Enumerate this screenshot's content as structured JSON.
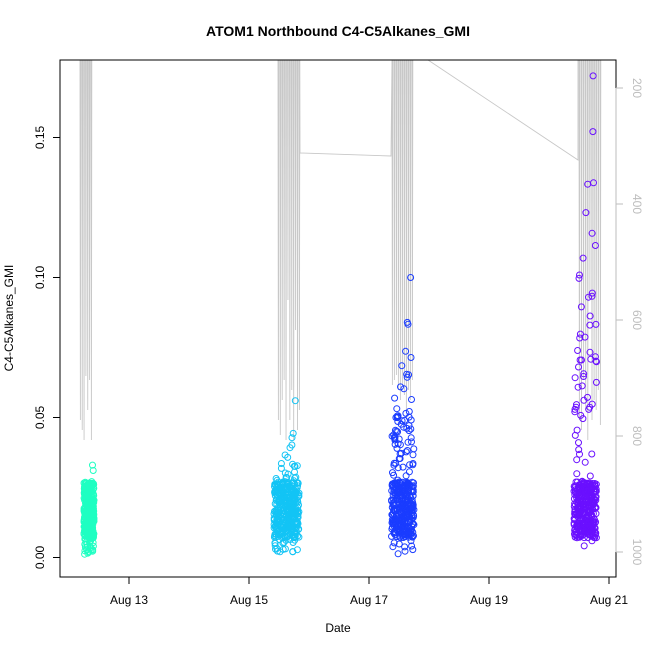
{
  "chart_data": {
    "type": "scatter",
    "title": "ATOM1 Northbound C4-C5Alkanes_GMI",
    "xlabel": "Date",
    "ylabel": "C4-C5Alkanes_GMI",
    "x_ticks": [
      "Aug 13",
      "Aug 15",
      "Aug 17",
      "Aug 19",
      "Aug 21"
    ],
    "y_ticks": [
      "0.00",
      "0.05",
      "0.10",
      "0.15"
    ],
    "y2_ticks": [
      "200",
      "400",
      "600",
      "800",
      "1000"
    ],
    "y2_reversed": true,
    "grid": false,
    "colors": {
      "series": [
        "#1fffc2",
        "#13c4f5",
        "#1a3cff",
        "#6a10ff"
      ],
      "altitude_line": "#c8c8c8",
      "axis": "#000000",
      "right_axis": "#bdbdbd"
    },
    "series": [
      {
        "x_range": [
          "Aug 12 06:00",
          "Aug 12 10:00"
        ],
        "y_range": [
          0.001,
          0.033
        ]
      },
      {
        "x_range": [
          "Aug 15 10:00",
          "Aug 15 20:00"
        ],
        "y_range": [
          0.001,
          0.056
        ]
      },
      {
        "x_range": [
          "Aug 17 09:00",
          "Aug 17 18:00"
        ],
        "y_range": [
          0.001,
          0.1
        ]
      },
      {
        "x_range": [
          "Aug 20 10:00",
          "Aug 20 19:00"
        ],
        "y_range": [
          0.001,
          0.172
        ]
      }
    ]
  }
}
